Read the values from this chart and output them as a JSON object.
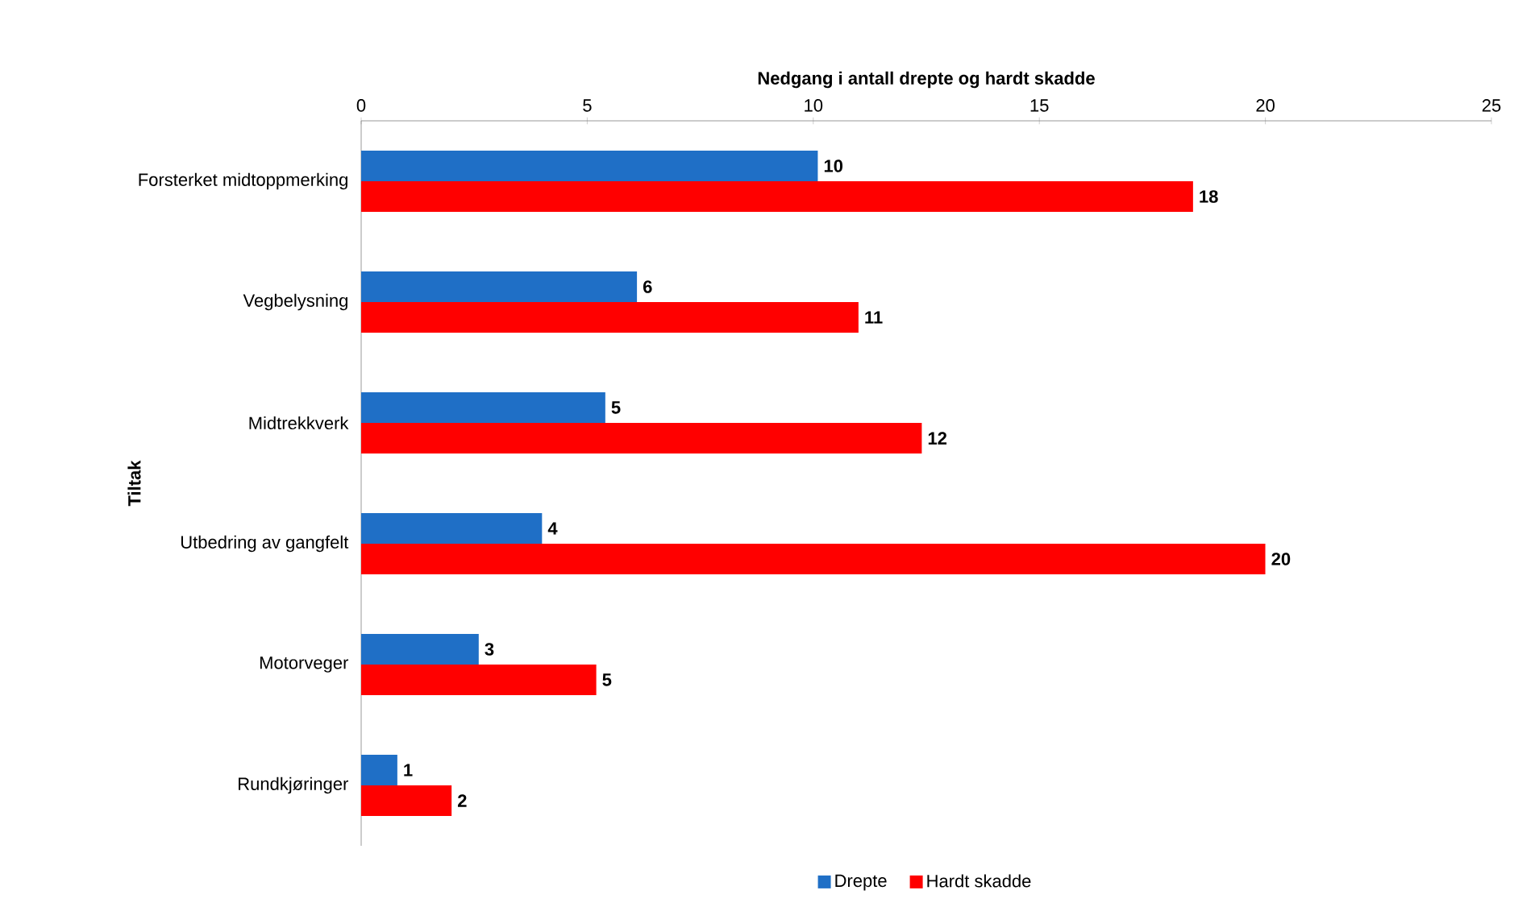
{
  "chart_data": {
    "type": "bar",
    "orientation": "horizontal",
    "xlabel": "Nedgang i antall drepte og hardt skadde",
    "ylabel": "Tiltak",
    "categories": [
      "Forsterket midtoppmerking",
      "Vegbelysning",
      "Midtrekkverk",
      "Utbedring av gangfelt",
      "Motorveger",
      "Rundkjøringer"
    ],
    "series": [
      {
        "name": "Drepte",
        "color": "#1f6fc6",
        "values": [
          10.1,
          6.1,
          5.4,
          4.0,
          2.6,
          0.8
        ],
        "value_labels": [
          "10",
          "6",
          "5",
          "4",
          "3",
          "1"
        ]
      },
      {
        "name": "Hardt skadde",
        "color": "#ff0000",
        "values": [
          18.4,
          11.0,
          12.4,
          20.0,
          5.2,
          2.0
        ],
        "value_labels": [
          "18",
          "11",
          "12",
          "20",
          "5",
          "2"
        ]
      }
    ],
    "xlim": [
      0,
      25
    ],
    "xticks": [
      0,
      5,
      10,
      15,
      20,
      25
    ],
    "legend": "bottom",
    "grid": false
  }
}
